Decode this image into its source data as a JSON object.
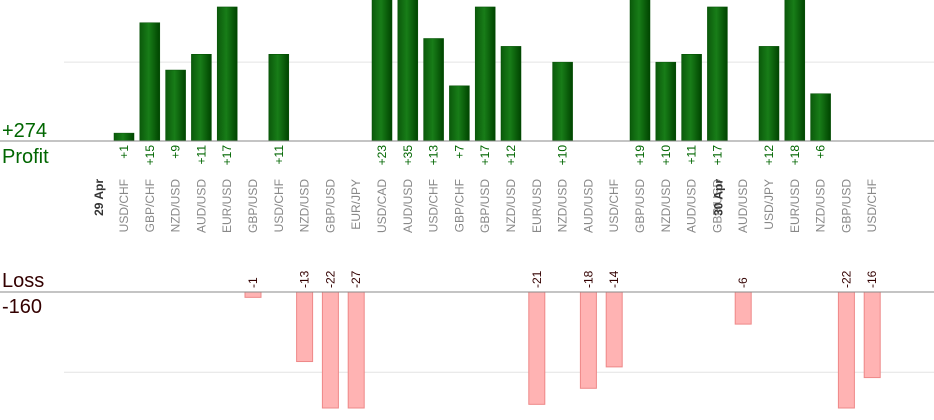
{
  "chart_data": {
    "type": "bar",
    "profit_total": "+274",
    "loss_total": "-160",
    "profit_label": "Profit",
    "loss_label": "Loss",
    "colors": {
      "profit": "#1a7a1a",
      "profit_dark": "#004d00",
      "profit_text": "#006600",
      "loss": "#ffb3b3",
      "loss_stroke": "#ee8888",
      "loss_text": "#330000",
      "axis_text": "#888888",
      "grid": "#e4e4e4",
      "baseline": "#888888"
    },
    "categories": [
      {
        "date": "29 Apr",
        "label": "USD/CHF",
        "value": 1,
        "value_label": "+1"
      },
      {
        "date": "",
        "label": "GBP/CHF",
        "value": 15,
        "value_label": "+15"
      },
      {
        "date": "",
        "label": "NZD/USD",
        "value": 9,
        "value_label": "+9"
      },
      {
        "date": "",
        "label": "AUD/USD",
        "value": 11,
        "value_label": "+11"
      },
      {
        "date": "",
        "label": "EUR/USD",
        "value": 17,
        "value_label": "+17"
      },
      {
        "date": "",
        "label": "GBP/USD",
        "value": -1,
        "value_label": "-1"
      },
      {
        "date": "",
        "label": "USD/CHF",
        "value": 11,
        "value_label": "+11"
      },
      {
        "date": "",
        "label": "NZD/USD",
        "value": -13,
        "value_label": "-13"
      },
      {
        "date": "",
        "label": "GBP/USD",
        "value": -22,
        "value_label": "-22"
      },
      {
        "date": "",
        "label": "EUR/JPY",
        "value": -27,
        "value_label": "-27"
      },
      {
        "date": "",
        "label": "USD/CAD",
        "value": 23,
        "value_label": "+23"
      },
      {
        "date": "",
        "label": "AUD/USD",
        "value": 35,
        "value_label": "+35"
      },
      {
        "date": "",
        "label": "USD/CHF",
        "value": 13,
        "value_label": "+13"
      },
      {
        "date": "",
        "label": "GBP/CHF",
        "value": 7,
        "value_label": "+7"
      },
      {
        "date": "",
        "label": "GBP/USD",
        "value": 17,
        "value_label": "+17"
      },
      {
        "date": "",
        "label": "NZD/USD",
        "value": 12,
        "value_label": "+12"
      },
      {
        "date": "",
        "label": "EUR/USD",
        "value": -21,
        "value_label": "-21"
      },
      {
        "date": "",
        "label": "NZD/USD",
        "value": 10,
        "value_label": "+10"
      },
      {
        "date": "",
        "label": "AUD/USD",
        "value": -18,
        "value_label": "-18"
      },
      {
        "date": "",
        "label": "USD/CHF",
        "value": -14,
        "value_label": "-14"
      },
      {
        "date": "",
        "label": "GBP/USD",
        "value": 19,
        "value_label": "+19"
      },
      {
        "date": "",
        "label": "NZD/USD",
        "value": 10,
        "value_label": "+10"
      },
      {
        "date": "",
        "label": "AUD/USD",
        "value": 11,
        "value_label": "+11"
      },
      {
        "date": "",
        "label": "GBP/USD",
        "value": 17,
        "value_label": "+17"
      },
      {
        "date": "30 Apr",
        "label": "AUD/USD",
        "value": -6,
        "value_label": "-6"
      },
      {
        "date": "",
        "label": "USD/JPY",
        "value": 12,
        "value_label": "+12"
      },
      {
        "date": "",
        "label": "EUR/USD",
        "value": 18,
        "value_label": "+18"
      },
      {
        "date": "",
        "label": "NZD/USD",
        "value": 6,
        "value_label": "+6"
      },
      {
        "date": "",
        "label": "GBP/USD",
        "value": -22,
        "value_label": "-22"
      },
      {
        "date": "",
        "label": "USD/CHF",
        "value": -16,
        "value_label": "-16"
      }
    ],
    "profit_scale_max": 17.5,
    "loss_scale_max": 21.5,
    "profit_gridline_value": 10,
    "loss_gridline_value": 15,
    "grid": true
  }
}
